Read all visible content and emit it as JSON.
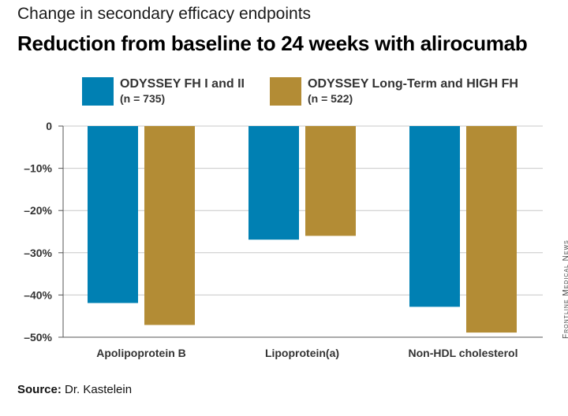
{
  "chart_data": {
    "type": "bar",
    "subtitle": "Change in secondary efficacy endpoints",
    "title": "Reduction from baseline to 24 weeks with alirocumab",
    "categories": [
      "Apolipoprotein B",
      "Lipoprotein(a)",
      "Non-HDL cholesterol"
    ],
    "series": [
      {
        "name": "ODYSSEY FH I and II",
        "n_label": "(n = 735)",
        "color": "#0080b3",
        "values": [
          -41.9,
          -26.9,
          -42.8
        ]
      },
      {
        "name": "ODYSSEY Long-Term and HIGH FH",
        "n_label": "(n = 522)",
        "color": "#b38c35",
        "values": [
          -47.1,
          -26.0,
          -48.9
        ]
      }
    ],
    "yticks": [
      "0",
      "–10%",
      "–20%",
      "–30%",
      "–40%",
      "–50%"
    ],
    "ytick_values": [
      0,
      -10,
      -20,
      -30,
      -40,
      -50
    ],
    "ylim": [
      -50,
      0
    ],
    "grid": true,
    "legend_position": "top"
  },
  "source": {
    "label": "Source:",
    "text": " Dr. Kastelein"
  },
  "credit": "Frontline Medical News"
}
